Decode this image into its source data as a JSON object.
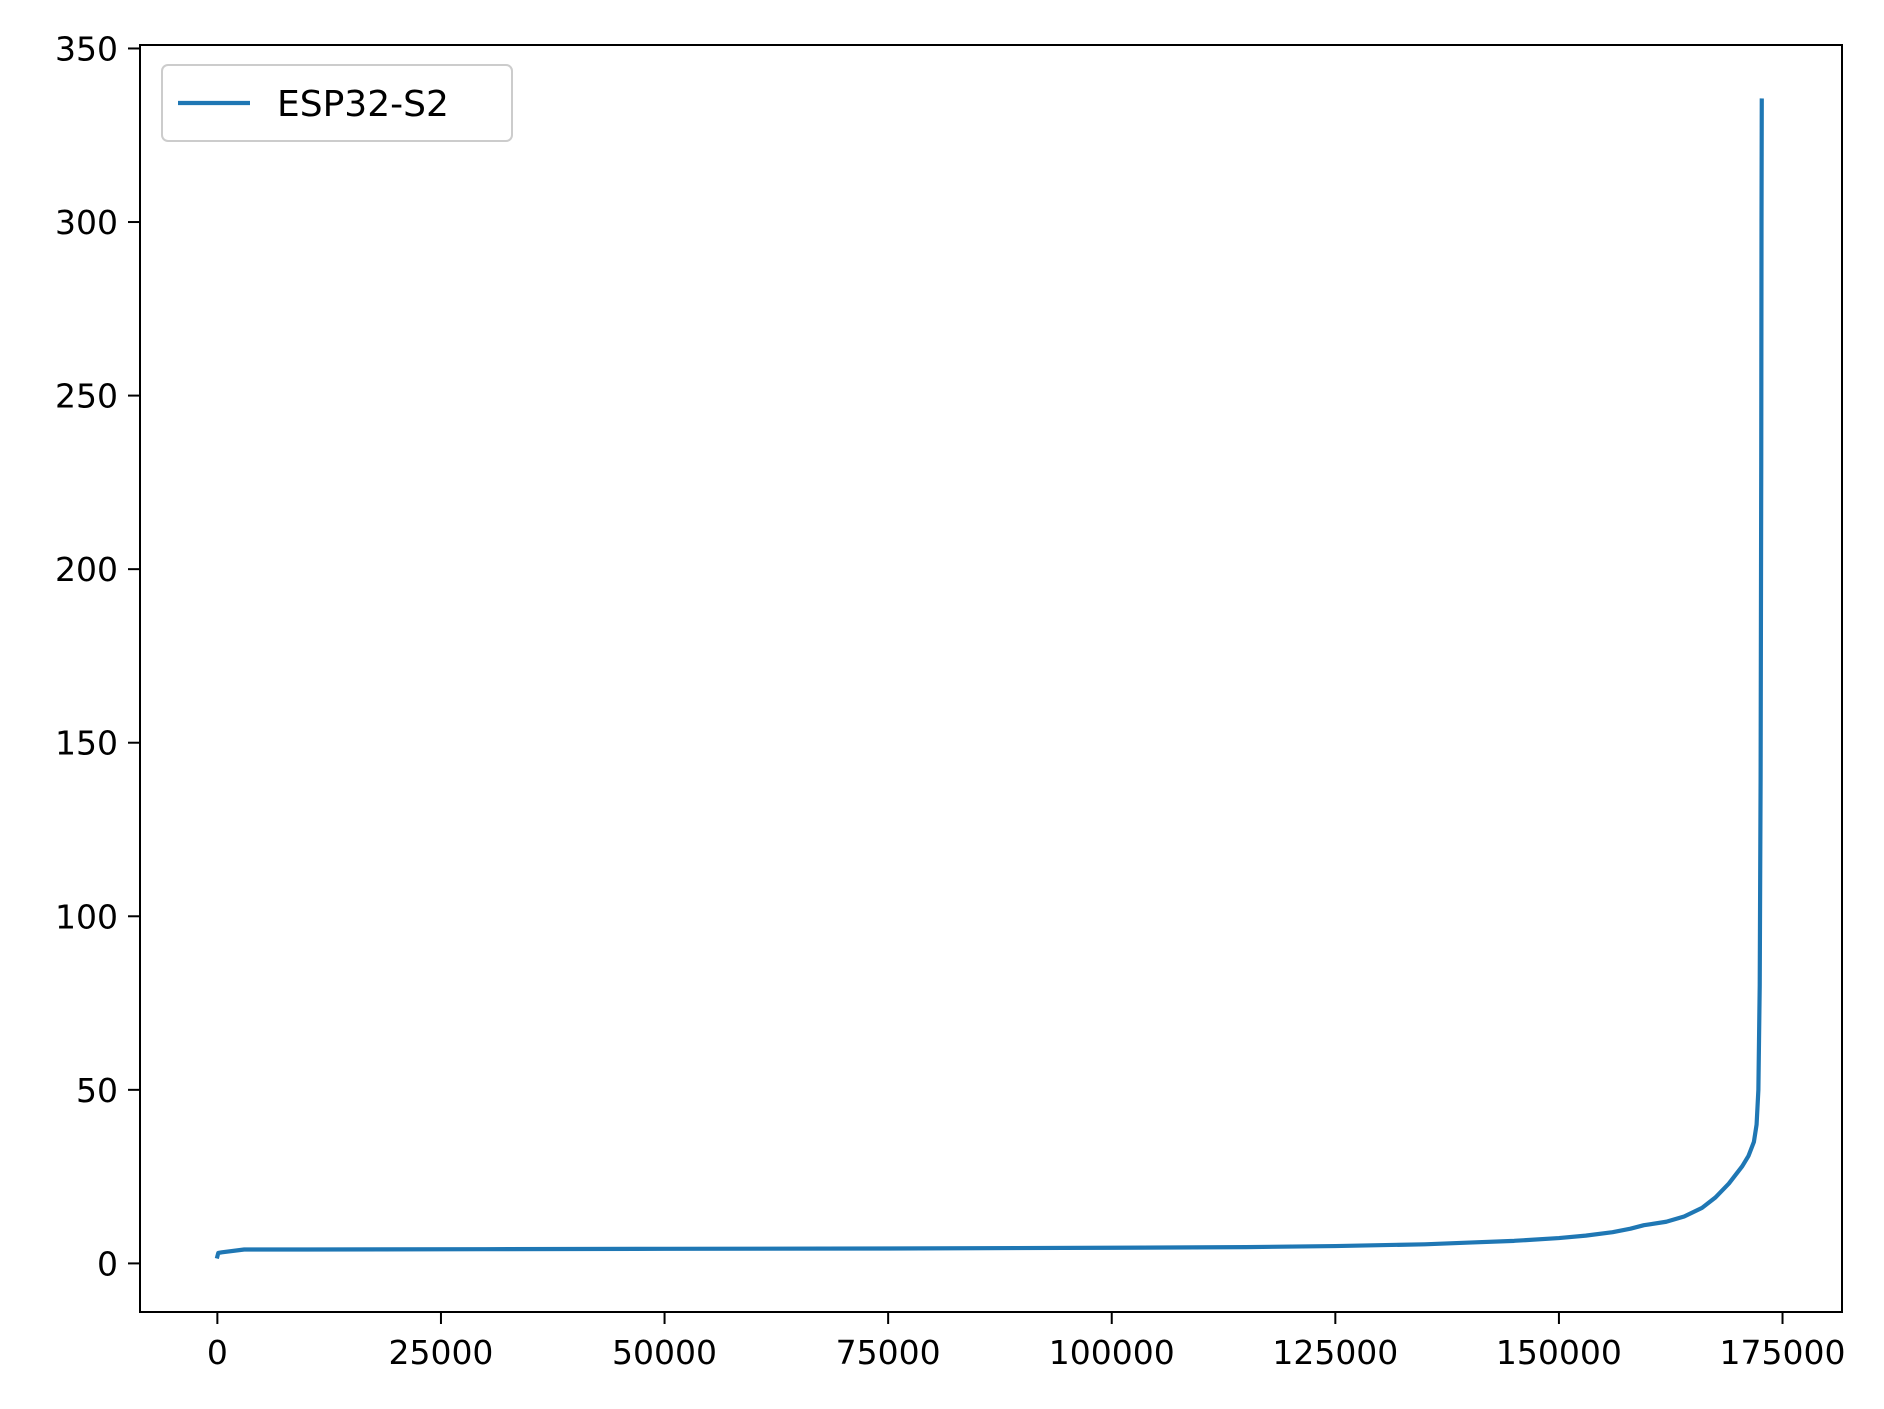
{
  "chart_data": {
    "type": "line",
    "title": "",
    "xlabel": "",
    "ylabel": "",
    "xlim": [
      -8650,
      181650
    ],
    "ylim": [
      -14,
      351
    ],
    "x_ticks": [
      0,
      25000,
      50000,
      75000,
      100000,
      125000,
      150000,
      175000
    ],
    "x_tick_labels": [
      "0",
      "25000",
      "50000",
      "75000",
      "100000",
      "125000",
      "150000",
      "175000"
    ],
    "y_ticks": [
      0,
      50,
      100,
      150,
      200,
      250,
      300,
      350
    ],
    "y_tick_labels": [
      "0",
      "50",
      "100",
      "150",
      "200",
      "250",
      "300",
      "350"
    ],
    "grid": false,
    "legend": {
      "placement": "upper-left"
    },
    "series": [
      {
        "name": "ESP32-S2",
        "color": "#1f77b4",
        "x": [
          0,
          100,
          500,
          3000,
          10000,
          30000,
          50000,
          75000,
          100000,
          115000,
          125000,
          135000,
          140000,
          145000,
          150000,
          153000,
          156000,
          158000,
          159500,
          162000,
          164000,
          166000,
          167500,
          169000,
          170500,
          171200,
          171800,
          172100,
          172300,
          172450,
          172550,
          172620,
          172650,
          172680
        ],
        "y": [
          2,
          3,
          3.2,
          4,
          4,
          4.1,
          4.2,
          4.3,
          4.5,
          4.7,
          5,
          5.5,
          6,
          6.5,
          7.3,
          8,
          9,
          10,
          11,
          12,
          13.5,
          16,
          19,
          23,
          28,
          31,
          35,
          40,
          50,
          80,
          140,
          230,
          300,
          335
        ]
      }
    ]
  }
}
